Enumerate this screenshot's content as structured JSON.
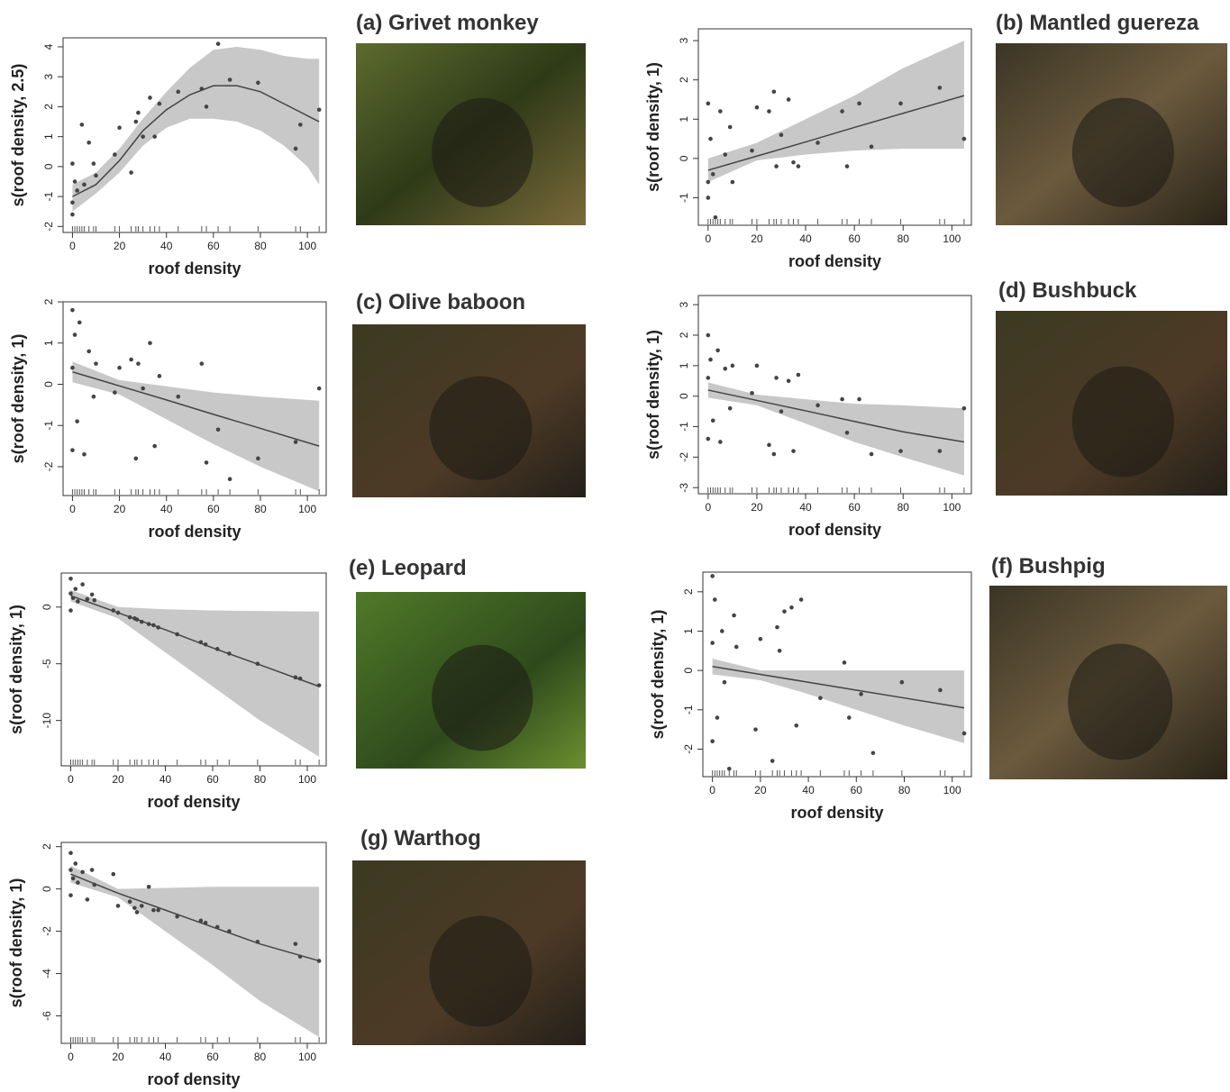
{
  "chart_data": [
    {
      "type": "smooth",
      "title": "(a) Grivet monkey",
      "xlabel": "roof density",
      "ylabel": "s(roof density, 2.5)",
      "xlim": [
        -4,
        108
      ],
      "ylim": [
        -2.2,
        4.3
      ],
      "xticks": [
        0,
        20,
        40,
        60,
        80,
        100
      ],
      "yticks": [
        -2,
        -1,
        0,
        1,
        2,
        3,
        4
      ],
      "fit": {
        "x": [
          0,
          10,
          20,
          30,
          40,
          50,
          60,
          70,
          80,
          90,
          100,
          105
        ],
        "y": [
          -1,
          -0.6,
          0.2,
          1.2,
          1.9,
          2.4,
          2.7,
          2.7,
          2.5,
          2.1,
          1.7,
          1.5
        ],
        "lower": [
          -1.5,
          -0.9,
          -0.2,
          0.7,
          1.3,
          1.6,
          1.6,
          1.5,
          1.2,
          0.7,
          0,
          -0.6
        ],
        "upper": [
          -0.6,
          -0.2,
          0.6,
          1.6,
          2.5,
          3.3,
          3.9,
          4.0,
          3.9,
          3.7,
          3.6,
          3.6
        ]
      },
      "points": {
        "x": [
          0,
          0,
          0,
          1,
          2,
          4,
          5,
          7,
          9,
          10,
          18,
          20,
          25,
          27,
          28,
          30,
          33,
          35,
          37,
          45,
          55,
          57,
          62,
          67,
          79,
          95,
          97,
          105
        ],
        "y": [
          -1.6,
          -1.2,
          0.1,
          -0.5,
          -0.8,
          1.4,
          -0.6,
          0.8,
          0.1,
          -0.3,
          0.4,
          1.3,
          -0.2,
          1.5,
          1.8,
          1.0,
          2.3,
          1.0,
          2.1,
          2.5,
          2.6,
          2.0,
          4.1,
          2.9,
          2.8,
          0.6,
          1.4,
          1.9
        ]
      },
      "rug": [
        0,
        1,
        2,
        3,
        4,
        5,
        7,
        9,
        10,
        18,
        20,
        25,
        27,
        28,
        30,
        33,
        35,
        37,
        45,
        55,
        57,
        62,
        67,
        79,
        95,
        97,
        105
      ]
    },
    {
      "type": "smooth",
      "title": "(b) Mantled guereza",
      "xlabel": "roof density",
      "ylabel": "s(roof density, 1)",
      "xlim": [
        -4,
        108
      ],
      "ylim": [
        -1.7,
        3.3
      ],
      "xticks": [
        0,
        20,
        40,
        60,
        80,
        100
      ],
      "yticks": [
        -1,
        0,
        1,
        2,
        3
      ],
      "fit": {
        "x": [
          0,
          20,
          40,
          60,
          80,
          105
        ],
        "y": [
          -0.3,
          0.06,
          0.42,
          0.79,
          1.15,
          1.6
        ],
        "lower": [
          -0.6,
          -0.05,
          0.1,
          0.2,
          0.25,
          0.25
        ],
        "upper": [
          0,
          0.4,
          1.0,
          1.6,
          2.3,
          3.0
        ]
      },
      "points": {
        "x": [
          0,
          0,
          0,
          1,
          2,
          3,
          5,
          7,
          9,
          10,
          18,
          20,
          25,
          27,
          28,
          30,
          33,
          35,
          37,
          45,
          55,
          57,
          62,
          67,
          79,
          95,
          105
        ],
        "y": [
          -1.0,
          -0.6,
          1.4,
          0.5,
          -0.4,
          -1.5,
          1.2,
          0.1,
          0.8,
          -0.6,
          0.2,
          1.3,
          1.2,
          1.7,
          -0.2,
          0.6,
          1.5,
          -0.1,
          -0.2,
          0.4,
          1.2,
          -0.2,
          1.4,
          0.3,
          1.4,
          1.8,
          0.5
        ]
      },
      "rug": [
        0,
        1,
        2,
        3,
        4,
        5,
        7,
        9,
        10,
        18,
        20,
        25,
        27,
        28,
        30,
        33,
        35,
        37,
        45,
        55,
        57,
        62,
        67,
        79,
        95,
        97,
        105
      ]
    },
    {
      "type": "smooth",
      "title": "(c) Olive baboon",
      "xlabel": "roof density",
      "ylabel": "s(roof density, 1)",
      "xlim": [
        -4,
        108
      ],
      "ylim": [
        -2.7,
        2
      ],
      "xticks": [
        0,
        20,
        40,
        60,
        80,
        100
      ],
      "yticks": [
        -2,
        -1,
        0,
        1,
        2
      ],
      "fit": {
        "x": [
          0,
          20,
          40,
          60,
          80,
          105
        ],
        "y": [
          0.3,
          -0.04,
          -0.38,
          -0.73,
          -1.07,
          -1.5
        ],
        "lower": [
          0.05,
          -0.25,
          -0.85,
          -1.45,
          -2.0,
          -2.6
        ],
        "upper": [
          0.55,
          0.1,
          -0.05,
          -0.2,
          -0.3,
          -0.4
        ]
      },
      "points": {
        "x": [
          0,
          0,
          0,
          1,
          2,
          3,
          5,
          7,
          9,
          10,
          18,
          20,
          25,
          27,
          28,
          30,
          33,
          35,
          37,
          45,
          55,
          57,
          62,
          67,
          79,
          95,
          105
        ],
        "y": [
          1.8,
          -1.6,
          0.4,
          1.2,
          -0.9,
          1.5,
          -1.7,
          0.8,
          -0.3,
          0.5,
          -0.2,
          0.4,
          0.6,
          -1.8,
          0.5,
          -0.1,
          1.0,
          -1.5,
          0.2,
          -0.3,
          0.5,
          -1.9,
          -1.1,
          -2.3,
          -1.8,
          -1.4,
          -0.1
        ]
      },
      "rug": [
        0,
        1,
        2,
        3,
        4,
        5,
        7,
        9,
        10,
        18,
        20,
        25,
        27,
        28,
        30,
        33,
        35,
        37,
        45,
        55,
        57,
        62,
        67,
        79,
        95,
        97,
        105
      ]
    },
    {
      "type": "smooth",
      "title": "(d) Bushbuck",
      "xlabel": "roof density",
      "ylabel": "s(roof density, 1)",
      "xlim": [
        -4,
        108
      ],
      "ylim": [
        -3.2,
        3.3
      ],
      "xticks": [
        0,
        20,
        40,
        60,
        80,
        100
      ],
      "yticks": [
        -3,
        -2,
        -1,
        0,
        1,
        2,
        3
      ],
      "fit": {
        "x": [
          0,
          20,
          40,
          60,
          80,
          105
        ],
        "y": [
          0.2,
          -0.14,
          -0.48,
          -0.83,
          -1.17,
          -1.5
        ],
        "lower": [
          -0.05,
          -0.3,
          -0.9,
          -1.5,
          -2.0,
          -2.6
        ],
        "upper": [
          0.45,
          0.05,
          -0.1,
          -0.25,
          -0.3,
          -0.4
        ]
      },
      "points": {
        "x": [
          0,
          0,
          0,
          1,
          2,
          4,
          5,
          7,
          9,
          10,
          18,
          20,
          25,
          27,
          28,
          30,
          33,
          35,
          37,
          45,
          55,
          57,
          62,
          67,
          79,
          95,
          105
        ],
        "y": [
          2.0,
          -1.4,
          0.6,
          1.2,
          -0.8,
          1.5,
          -1.5,
          0.9,
          -0.4,
          1.0,
          0.1,
          1.0,
          -1.6,
          -1.9,
          0.6,
          -0.5,
          0.5,
          -1.8,
          0.7,
          -0.3,
          -0.1,
          -1.2,
          -0.1,
          -1.9,
          -1.8,
          -1.8,
          -0.4
        ]
      },
      "rug": [
        0,
        1,
        2,
        3,
        4,
        5,
        7,
        9,
        10,
        18,
        20,
        25,
        27,
        28,
        30,
        33,
        35,
        37,
        45,
        55,
        57,
        62,
        67,
        79,
        95,
        97,
        105
      ]
    },
    {
      "type": "smooth",
      "title": "(e) Leopard",
      "xlabel": "roof density",
      "ylabel": "s(roof density, 1)",
      "xlim": [
        -4,
        108
      ],
      "ylim": [
        -14,
        3
      ],
      "xticks": [
        0,
        20,
        40,
        60,
        80,
        100
      ],
      "yticks": [
        -10,
        -5,
        0
      ],
      "fit": {
        "x": [
          0,
          20,
          40,
          60,
          80,
          105
        ],
        "y": [
          1.0,
          -0.5,
          -2.0,
          -3.6,
          -5.1,
          -7.0
        ],
        "lower": [
          0.5,
          -1.0,
          -4.0,
          -7,
          -10,
          -13.2
        ],
        "upper": [
          1.5,
          0,
          -0.2,
          -0.3,
          -0.35,
          -0.4
        ]
      },
      "points": {
        "x": [
          0,
          0,
          0,
          1,
          2,
          3,
          5,
          7,
          9,
          10,
          18,
          20,
          25,
          27,
          28,
          30,
          33,
          35,
          37,
          45,
          55,
          57,
          62,
          67,
          79,
          95,
          97,
          105
        ],
        "y": [
          2.5,
          -0.3,
          1.2,
          0.8,
          1.6,
          0.5,
          2.0,
          0.7,
          1.1,
          0.6,
          -0.3,
          -0.5,
          -0.9,
          -1.0,
          -1.1,
          -1.3,
          -1.5,
          -1.6,
          -1.8,
          -2.4,
          -3.1,
          -3.3,
          -3.7,
          -4.1,
          -5.0,
          -6.2,
          -6.3,
          -6.9
        ]
      },
      "rug": [
        0,
        1,
        2,
        3,
        4,
        5,
        7,
        9,
        10,
        18,
        20,
        25,
        27,
        28,
        30,
        33,
        35,
        37,
        45,
        55,
        57,
        62,
        67,
        79,
        95,
        97,
        105
      ]
    },
    {
      "type": "smooth",
      "title": "(f) Bushpig",
      "xlabel": "roof density",
      "ylabel": "s(roof density, 1)",
      "xlim": [
        -4,
        108
      ],
      "ylim": [
        -2.7,
        2.5
      ],
      "xticks": [
        0,
        20,
        40,
        60,
        80,
        100
      ],
      "yticks": [
        -2,
        -1,
        0,
        1,
        2
      ],
      "fit": {
        "x": [
          0,
          20,
          40,
          60,
          80,
          105
        ],
        "y": [
          0.1,
          -0.1,
          -0.3,
          -0.5,
          -0.7,
          -0.95
        ],
        "lower": [
          -0.1,
          -0.25,
          -0.6,
          -1.0,
          -1.4,
          -1.85
        ],
        "upper": [
          0.3,
          0,
          0,
          0,
          0,
          0
        ]
      },
      "points": {
        "x": [
          0,
          0,
          0,
          1,
          2,
          4,
          5,
          7,
          9,
          10,
          18,
          20,
          25,
          27,
          28,
          30,
          33,
          35,
          37,
          45,
          55,
          57,
          62,
          67,
          79,
          95,
          105
        ],
        "y": [
          2.4,
          -1.8,
          0.7,
          1.8,
          -1.2,
          1.0,
          -0.3,
          -2.5,
          1.4,
          0.6,
          -1.5,
          0.8,
          -2.3,
          1.1,
          0.5,
          1.5,
          1.6,
          -1.4,
          1.8,
          -0.7,
          0.2,
          -1.2,
          -0.6,
          -2.1,
          -0.3,
          -0.5,
          -1.6
        ]
      },
      "rug": [
        0,
        1,
        2,
        3,
        4,
        5,
        7,
        9,
        10,
        18,
        20,
        25,
        27,
        28,
        30,
        33,
        35,
        37,
        45,
        55,
        57,
        62,
        67,
        79,
        95,
        97,
        105
      ]
    },
    {
      "type": "smooth",
      "title": "(g) Warthog",
      "xlabel": "roof density",
      "ylabel": "s(roof density, 1)",
      "xlim": [
        -4,
        108
      ],
      "ylim": [
        -7.3,
        2.2
      ],
      "xticks": [
        0,
        20,
        40,
        60,
        80,
        100
      ],
      "yticks": [
        -6,
        -4,
        -2,
        0,
        2
      ],
      "fit": {
        "x": [
          0,
          20,
          40,
          60,
          80,
          105
        ],
        "y": [
          0.7,
          -0.2,
          -1.0,
          -1.8,
          -2.6,
          -3.4
        ],
        "lower": [
          0.3,
          -0.4,
          -2.0,
          -3.6,
          -5.3,
          -7
        ],
        "upper": [
          1.1,
          0,
          0.05,
          0.1,
          0.1,
          0.1
        ]
      },
      "points": {
        "x": [
          0,
          0,
          0,
          1,
          2,
          3,
          5,
          7,
          9,
          10,
          18,
          20,
          25,
          27,
          28,
          30,
          33,
          35,
          37,
          45,
          55,
          57,
          62,
          67,
          79,
          95,
          97,
          105
        ],
        "y": [
          1.7,
          -0.3,
          0.9,
          0.5,
          1.2,
          0.3,
          0.8,
          -0.5,
          0.9,
          0.2,
          0.7,
          -0.8,
          -0.6,
          -0.9,
          -1.1,
          -0.8,
          0.1,
          -1.0,
          -1.0,
          -1.3,
          -1.5,
          -1.6,
          -1.8,
          -2.0,
          -2.5,
          -2.6,
          -3.2,
          -3.4
        ]
      },
      "rug": [
        0,
        1,
        2,
        3,
        4,
        5,
        7,
        9,
        10,
        18,
        20,
        25,
        27,
        28,
        30,
        33,
        35,
        37,
        45,
        55,
        57,
        62,
        67,
        79,
        95,
        97,
        105
      ]
    }
  ]
}
